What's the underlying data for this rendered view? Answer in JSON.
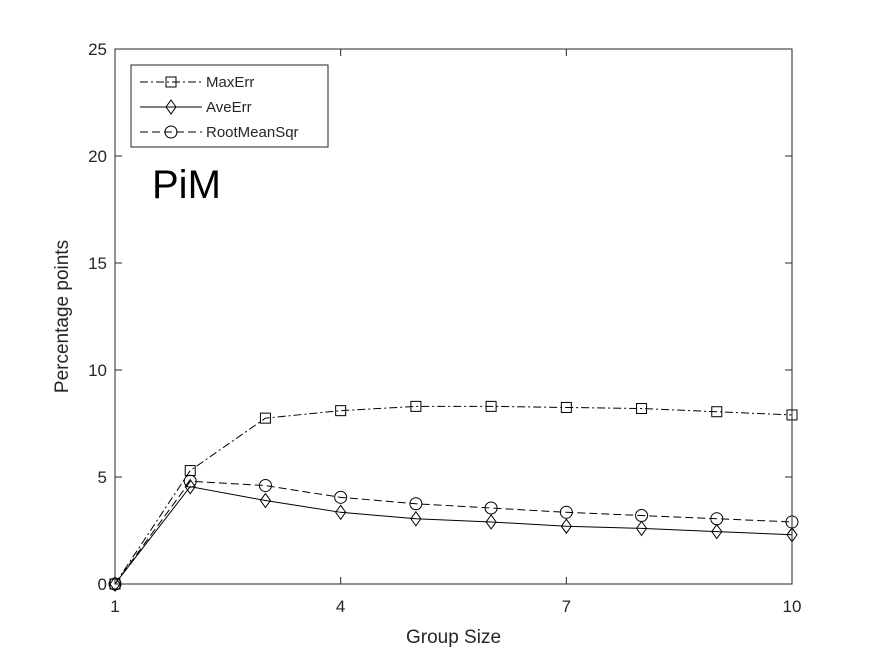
{
  "chart_data": {
    "type": "line",
    "xlabel": "Group Size",
    "ylabel": "Percentage points",
    "xlim": [
      1,
      10
    ],
    "ylim": [
      0,
      25
    ],
    "xticks": [
      1,
      4,
      7,
      10
    ],
    "yticks": [
      0,
      5,
      10,
      15,
      20,
      25
    ],
    "x": [
      1,
      2,
      3,
      4,
      5,
      6,
      7,
      8,
      9,
      10
    ],
    "annotation": "PiM",
    "grid": false,
    "legend_position": "top-left",
    "series": [
      {
        "name": "MaxErr",
        "values": [
          0,
          5.3,
          7.75,
          8.1,
          8.3,
          8.3,
          8.25,
          8.2,
          8.05,
          7.9
        ],
        "line_style": "dash-dot",
        "marker": "square",
        "color": "#000000"
      },
      {
        "name": "AveErr",
        "values": [
          0,
          4.55,
          3.9,
          3.35,
          3.05,
          2.9,
          2.7,
          2.6,
          2.45,
          2.3
        ],
        "line_style": "solid",
        "marker": "diamond",
        "color": "#000000"
      },
      {
        "name": "RootMeanSqr",
        "values": [
          0,
          4.8,
          4.6,
          4.05,
          3.75,
          3.55,
          3.35,
          3.2,
          3.05,
          2.9
        ],
        "line_style": "dashed",
        "marker": "circle",
        "color": "#000000"
      }
    ]
  }
}
